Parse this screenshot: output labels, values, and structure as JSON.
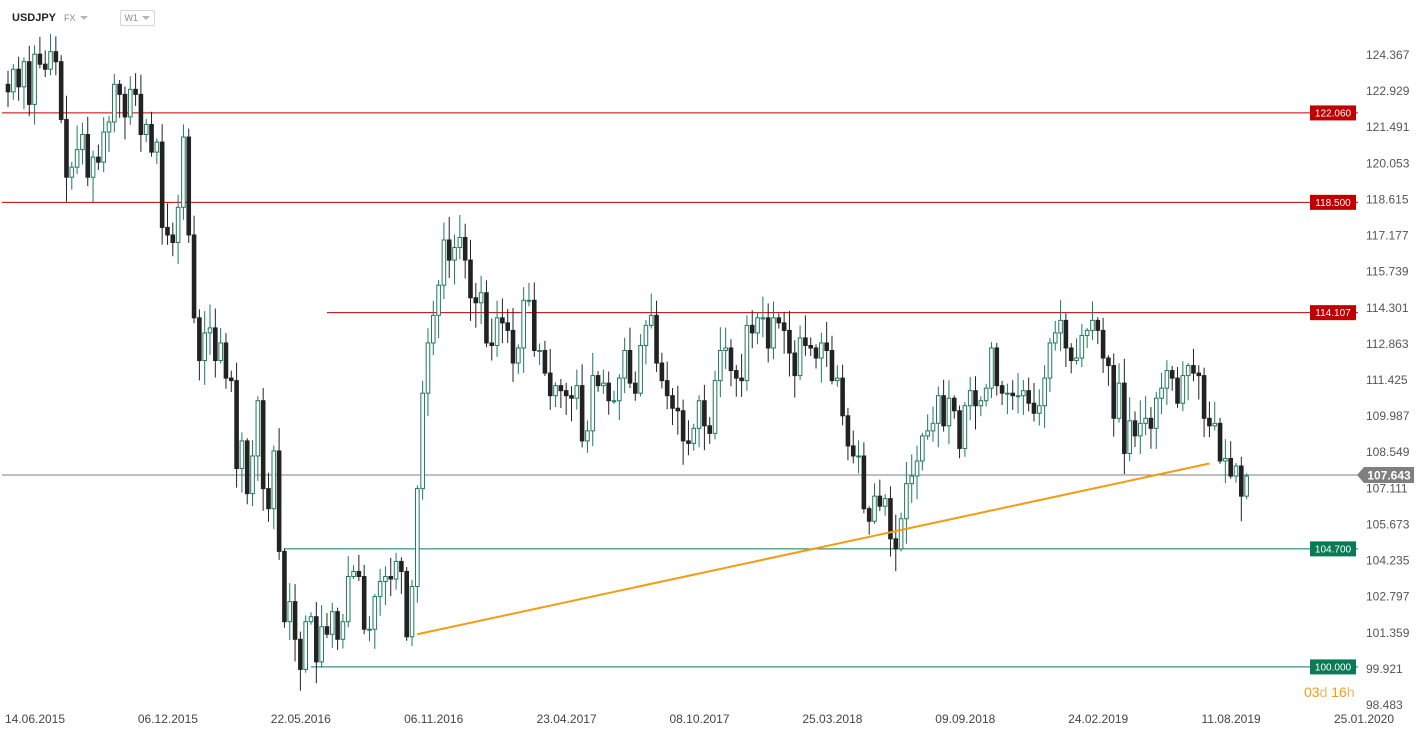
{
  "header": {
    "symbol": "USDJPY",
    "market": "FX",
    "timeframe": "W1"
  },
  "timer": {
    "days": "03",
    "days_unit": "d",
    "hours": "16",
    "hours_unit": "h"
  },
  "chart_data": {
    "type": "candlestick",
    "x_tick_labels": [
      "14.06.2015",
      "06.12.2015",
      "22.05.2016",
      "06.11.2016",
      "23.04.2017",
      "08.10.2017",
      "25.03.2018",
      "09.09.2018",
      "24.02.2019",
      "11.08.2019",
      "25.01.2020"
    ],
    "y_tick_labels": [
      "124.367",
      "122.929",
      "121.491",
      "120.053",
      "118.615",
      "117.177",
      "115.739",
      "114.301",
      "112.863",
      "111.425",
      "109.987",
      "108.549",
      "107.111",
      "105.673",
      "104.235",
      "102.797",
      "101.359",
      "99.921",
      "98.483"
    ],
    "ylim": [
      98.48,
      125.3
    ],
    "current_price": {
      "label": "107.643",
      "value": 107.643,
      "color": "#7f7f7f"
    },
    "horizontal_levels": [
      {
        "label": "122.060",
        "value": 122.06,
        "color": "#c00000",
        "start_week": 0
      },
      {
        "label": "118.500",
        "value": 118.5,
        "color": "#c00000",
        "start_week": 0
      },
      {
        "label": "114.107",
        "value": 114.107,
        "color": "#c00000",
        "start_week": 60
      },
      {
        "label": "104.700",
        "value": 104.7,
        "color": "#0a7a55",
        "start_week": 52
      },
      {
        "label": "100.000",
        "value": 100.0,
        "color": "#0a7a55",
        "start_week": 57
      }
    ],
    "trendline": {
      "color": "#f39c12",
      "points": [
        {
          "week": 77,
          "price": 101.3
        },
        {
          "week": 226,
          "price": 108.1
        }
      ]
    },
    "bull_color": "#1e7a5a",
    "bear_color": "#222222",
    "weeks_per_tick": 25,
    "closes": [
      122.9,
      123.8,
      123.1,
      124.1,
      122.4,
      124.4,
      124.0,
      123.8,
      124.5,
      124.1,
      121.8,
      119.5,
      119.9,
      120.6,
      121.2,
      119.5,
      120.3,
      120.1,
      121.3,
      121.7,
      123.2,
      122.8,
      121.9,
      123.0,
      122.8,
      121.2,
      121.6,
      120.5,
      120.9,
      117.5,
      117.2,
      116.9,
      118.3,
      121.1,
      117.2,
      113.9,
      112.2,
      113.3,
      113.5,
      112.2,
      112.9,
      111.5,
      111.4,
      107.9,
      109.0,
      106.9,
      108.4,
      110.6,
      107.1,
      106.3,
      108.6,
      104.6,
      101.8,
      102.6,
      101.1,
      99.9,
      101.8,
      102.0,
      100.2,
      101.6,
      101.3,
      102.2,
      101.1,
      101.8,
      103.6,
      103.8,
      103.6,
      101.5,
      101.5,
      102.8,
      103.4,
      103.6,
      103.5,
      104.2,
      103.8,
      101.2,
      103.2,
      107.1,
      110.9,
      112.9,
      114.0,
      115.2,
      117.0,
      116.2,
      116.7,
      117.1,
      116.2,
      114.7,
      114.5,
      114.9,
      112.9,
      112.8,
      113.9,
      113.7,
      113.4,
      112.1,
      112.7,
      114.6,
      114.6,
      112.6,
      112.6,
      111.7,
      110.8,
      111.2,
      111.0,
      110.8,
      110.7,
      111.2,
      109.0,
      109.4,
      111.6,
      111.2,
      111.3,
      110.6,
      110.6,
      111.5,
      112.6,
      111.3,
      110.9,
      112.8,
      113.6,
      114.0,
      112.1,
      111.4,
      110.8,
      110.3,
      110.2,
      109.0,
      108.9,
      109.5,
      110.6,
      109.6,
      109.3,
      111.4,
      112.6,
      112.7,
      111.8,
      111.5,
      111.4,
      113.6,
      113.3,
      113.9,
      113.9,
      112.7,
      113.9,
      113.7,
      113.4,
      112.5,
      111.6,
      113.1,
      112.8,
      112.7,
      112.3,
      112.9,
      112.6,
      111.4,
      111.5,
      110.0,
      108.8,
      108.4,
      108.4,
      106.3,
      105.8,
      106.8,
      106.4,
      106.7,
      105.1,
      104.7,
      105.9,
      107.3,
      107.6,
      108.2,
      109.2,
      109.4,
      109.7,
      110.8,
      109.6,
      110.7,
      110.2,
      108.7,
      110.4,
      111.0,
      110.4,
      110.6,
      111.1,
      112.7,
      111.2,
      110.9,
      110.9,
      110.8,
      110.8,
      111.0,
      110.5,
      110.1,
      110.4,
      111.5,
      112.9,
      113.3,
      113.8,
      112.7,
      112.2,
      112.3,
      113.2,
      113.4,
      113.8,
      113.4,
      112.3,
      112.0,
      109.9,
      111.3,
      108.5,
      109.8,
      109.2,
      109.7,
      109.9,
      109.5,
      110.7,
      111.1,
      111.8,
      111.5,
      110.5,
      111.6,
      112.0,
      111.7,
      111.6,
      109.9,
      109.6,
      109.7,
      108.2,
      108.3,
      107.6,
      108.0,
      106.8,
      107.6
    ]
  }
}
